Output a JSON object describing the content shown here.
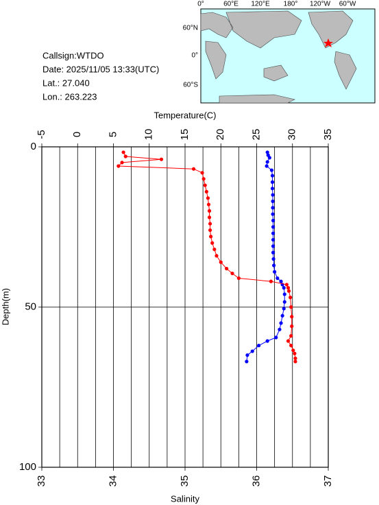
{
  "info": {
    "callsign": "Callsign:WTDO",
    "date": "Date:  2025/11/05 13:33(UTC)",
    "lat": "Lat.:  27.040",
    "lon": "Lon.:  263.223"
  },
  "map": {
    "lon_labels": [
      "0°",
      "60°E",
      "120°E",
      "180°",
      "120°W",
      "60°W"
    ],
    "lat_labels": [
      "60°N",
      "0°",
      "60°S"
    ]
  },
  "chart_data": {
    "type": "profile",
    "ylabel": "Depth(m)",
    "ylim": [
      0,
      100
    ],
    "yticks": [
      0,
      50,
      100
    ],
    "x2label": "Temperature(C)",
    "x2lim": [
      -5,
      35
    ],
    "x2ticks": [
      -5,
      0,
      5,
      10,
      15,
      20,
      25,
      30,
      35
    ],
    "xlabel": "Salinity",
    "xlim": [
      33,
      37
    ],
    "xticks": [
      33,
      34,
      35,
      36,
      37
    ],
    "xticks_minor": [
      33.25,
      33.5,
      33.75,
      34.25,
      34.5,
      34.75,
      35.25,
      35.5,
      35.75,
      36.25,
      36.5,
      36.75
    ],
    "series": [
      {
        "axis": "x2",
        "color": "#0000ff",
        "depth": [
          1.7,
          2.6,
          3.4,
          4.7,
          6,
          7.3,
          9,
          11,
          13,
          15,
          17,
          19,
          21,
          23,
          25,
          27,
          29,
          31,
          33,
          35,
          37,
          39,
          41,
          42,
          43,
          44,
          46,
          48.4,
          50.5,
          52.7,
          55,
          57,
          59.5,
          60.6,
          62,
          63.8,
          65,
          67
        ],
        "values": [
          26.5,
          26.6,
          26.8,
          26.5,
          26.4,
          27.1,
          27.2,
          27.2,
          27.2,
          27.25,
          27.25,
          27.25,
          27.25,
          27.3,
          27.3,
          27.3,
          27.3,
          27.3,
          27.3,
          27.35,
          27.4,
          27.5,
          27.9,
          28.4,
          28.6,
          28.8,
          28.9,
          28.9,
          28.8,
          28.6,
          28.4,
          28.2,
          27.7,
          26.5,
          25.3,
          24.4,
          23.7,
          23.6
        ]
      },
      {
        "axis": "x",
        "color": "#ff0000",
        "depth": [
          1.7,
          3,
          3.9,
          4.9,
          6,
          6.9,
          8.1,
          10,
          12,
          14,
          16,
          18,
          20,
          22,
          24,
          26,
          28,
          30,
          32,
          34,
          36,
          38,
          39.5,
          41,
          42,
          43,
          44,
          45,
          47,
          50,
          53,
          56,
          59,
          60.6,
          62,
          63.5,
          64.5,
          66,
          67
        ],
        "values": [
          34.14,
          34.17,
          34.67,
          34.12,
          34.07,
          35.12,
          35.24,
          35.26,
          35.28,
          35.3,
          35.32,
          35.33,
          35.34,
          35.34,
          35.35,
          35.35,
          35.36,
          35.38,
          35.41,
          35.44,
          35.5,
          35.58,
          35.66,
          35.75,
          36.2,
          36.42,
          36.44,
          36.45,
          36.47,
          36.48,
          36.49,
          36.49,
          36.48,
          36.44,
          36.48,
          36.51,
          36.53,
          36.54,
          36.54
        ]
      }
    ]
  }
}
